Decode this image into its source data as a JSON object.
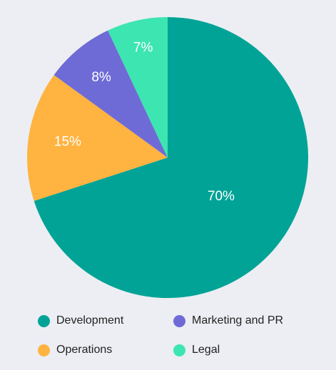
{
  "chart_data": {
    "type": "pie",
    "title": "",
    "categories": [
      "Development",
      "Operations",
      "Marketing and PR",
      "Legal"
    ],
    "values": [
      70,
      15,
      8,
      7
    ],
    "value_labels": [
      "70%",
      "15%",
      "8%",
      "7%"
    ],
    "colors": [
      "#00a396",
      "#ffb340",
      "#6e6bd6",
      "#3de5b0"
    ],
    "start_angle": "top, clockwise",
    "legend_position": "bottom",
    "legend": [
      {
        "label": "Development",
        "color": "#00a396"
      },
      {
        "label": "Marketing and PR",
        "color": "#6e6bd6"
      },
      {
        "label": "Operations",
        "color": "#ffb340"
      },
      {
        "label": "Legal",
        "color": "#3de5b0"
      }
    ]
  }
}
